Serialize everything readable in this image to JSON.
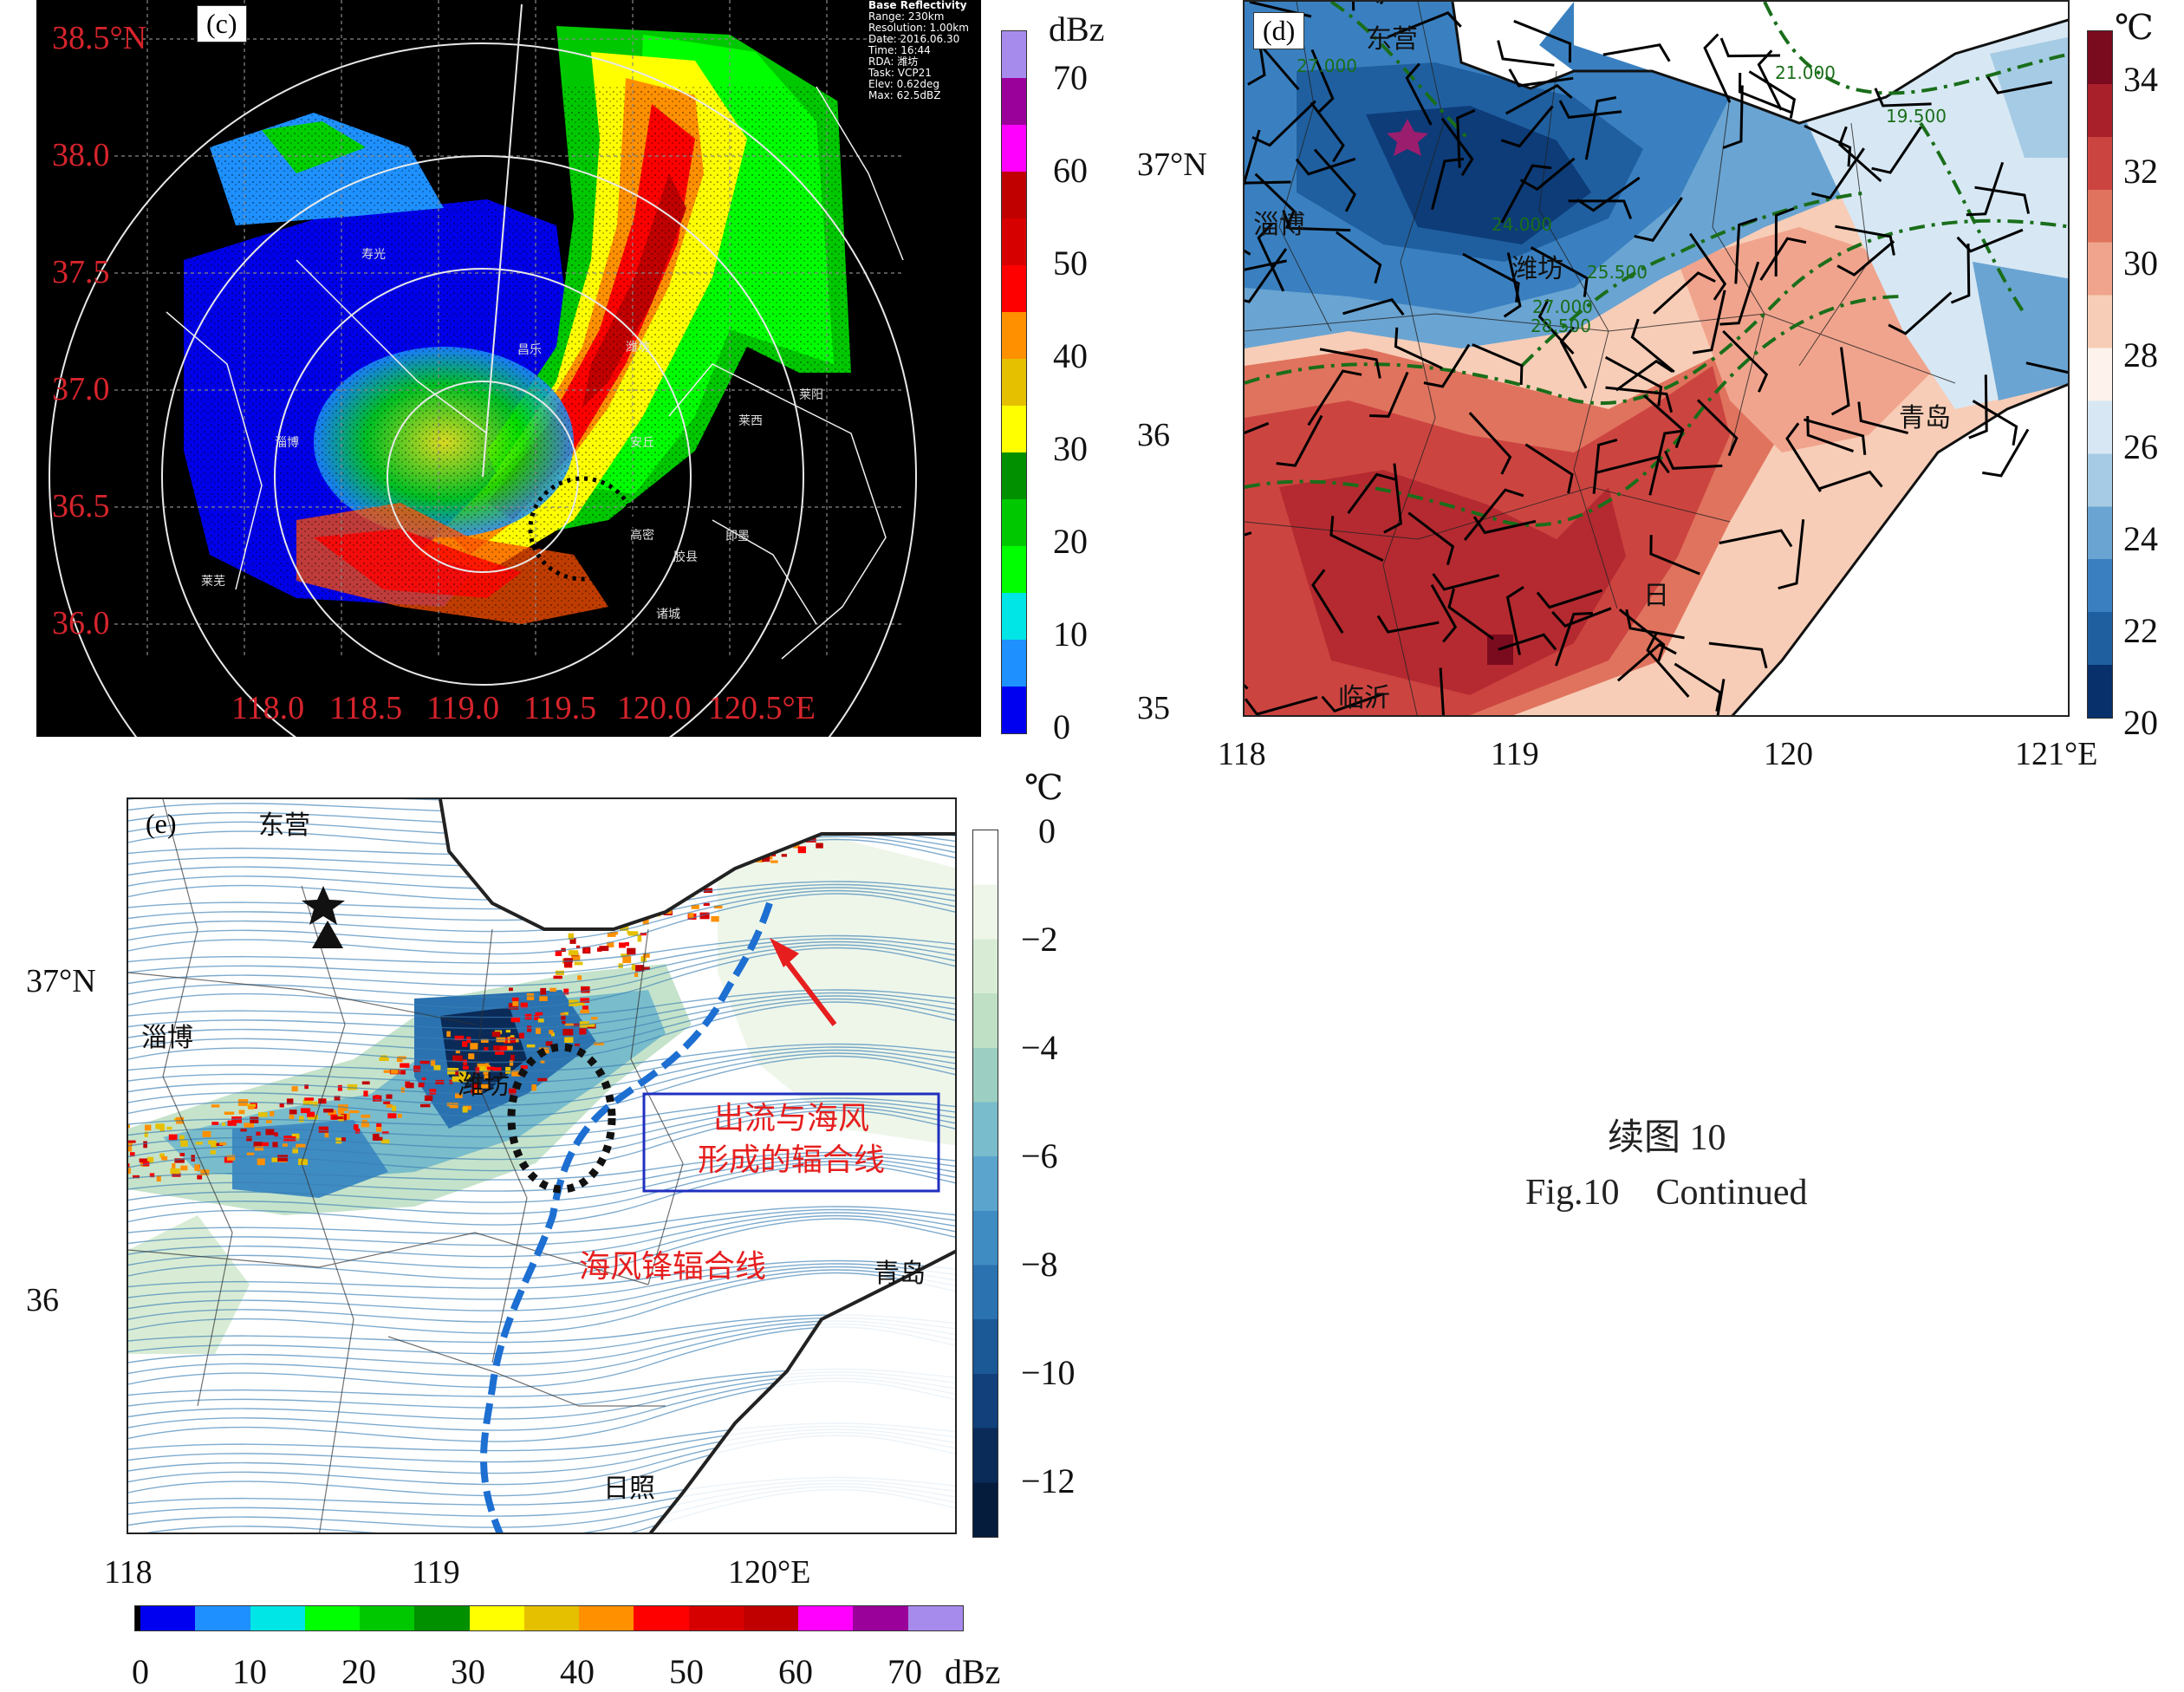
{
  "panel_c": {
    "label": "(c)",
    "info": [
      "Base Reflectivity",
      "Range: 230km",
      "Resolution: 1.00km",
      "Date: 2016.06.30",
      "Time: 16:44",
      "RDA: 潍坊",
      "Task: VCP21",
      "Elev: 0.62deg",
      "Max: 62.5dBZ"
    ],
    "lat_ticks": [
      "38.5°N",
      "38.0",
      "37.5",
      "37.0",
      "36.5",
      "36.0"
    ],
    "lon_ticks": [
      "118.0",
      "118.5",
      "119.0",
      "119.5",
      "120.0",
      "120.5°E"
    ],
    "cities": [
      "淄博",
      "潍坊",
      "莱阳",
      "莱西",
      "即墨",
      "高密",
      "胶县",
      "诸城",
      "莱芜",
      "寿光",
      "昌乐",
      "安丘"
    ],
    "colorbar": {
      "unit": "dBz",
      "ticks": [
        "70",
        "60",
        "50",
        "40",
        "30",
        "20",
        "10",
        "0"
      ]
    }
  },
  "panel_d": {
    "label": "(d)",
    "lat_ticks": [
      "37°N",
      "36",
      "35"
    ],
    "lon_ticks": [
      "118",
      "119",
      "120",
      "121°E"
    ],
    "cities": [
      "东营",
      "淄博",
      "潍坊",
      "临沂",
      "青岛",
      "日"
    ],
    "contour_labels": [
      "27.000",
      "21.000",
      "19.500",
      "25.500",
      "27.000",
      "28.500",
      "24.000"
    ],
    "colorbar": {
      "unit": "℃",
      "ticks": [
        "34",
        "32",
        "30",
        "28",
        "26",
        "24",
        "22",
        "20"
      ]
    }
  },
  "panel_e": {
    "label": "(e)",
    "lat_ticks": [
      "37°N",
      "36"
    ],
    "lon_ticks": [
      "118",
      "119",
      "120°E"
    ],
    "cities": [
      "东营",
      "淄博",
      "潍坊",
      "青岛",
      "日照"
    ],
    "annotations": {
      "box_line1": "出流与海风",
      "box_line2": "形成的辐合线",
      "sea_breeze": "海风锋辐合线"
    },
    "colorbar_right": {
      "unit": "℃",
      "ticks": [
        "0",
        "−2",
        "−4",
        "−6",
        "−8",
        "−10",
        "−12"
      ]
    },
    "colorbar_bottom": {
      "unit": "dBz",
      "ticks": [
        "0",
        "10",
        "20",
        "30",
        "40",
        "50",
        "60",
        "70"
      ]
    }
  },
  "caption": {
    "cn": "续图 10",
    "en": "Fig.10    Continued"
  },
  "colors": {
    "radar": [
      "#0000f0",
      "#1e90ff",
      "#00e5e5",
      "#00ff00",
      "#00c800",
      "#009000",
      "#ffff00",
      "#e5c000",
      "#ff9000",
      "#ff0000",
      "#d70000",
      "#c00000",
      "#ff00ff",
      "#9a009a",
      "#a78bec"
    ],
    "temp": [
      "#08306b",
      "#1f5fa0",
      "#3a80c0",
      "#6aa4d2",
      "#a6cbe4",
      "#d7e8f4",
      "#fdf2ec",
      "#f7cdb7",
      "#f0a48d",
      "#e0735e",
      "#cc4440",
      "#a91f2a",
      "#7a0a1d"
    ],
    "diff": [
      "#ffffff",
      "#eef6ea",
      "#d8ecd5",
      "#bfe0c5",
      "#9ccfc2",
      "#79bccb",
      "#5aa4ce",
      "#3f8cc2",
      "#2a72b0",
      "#1b5896",
      "#11407a",
      "#0a2a58",
      "#061c3c"
    ]
  }
}
